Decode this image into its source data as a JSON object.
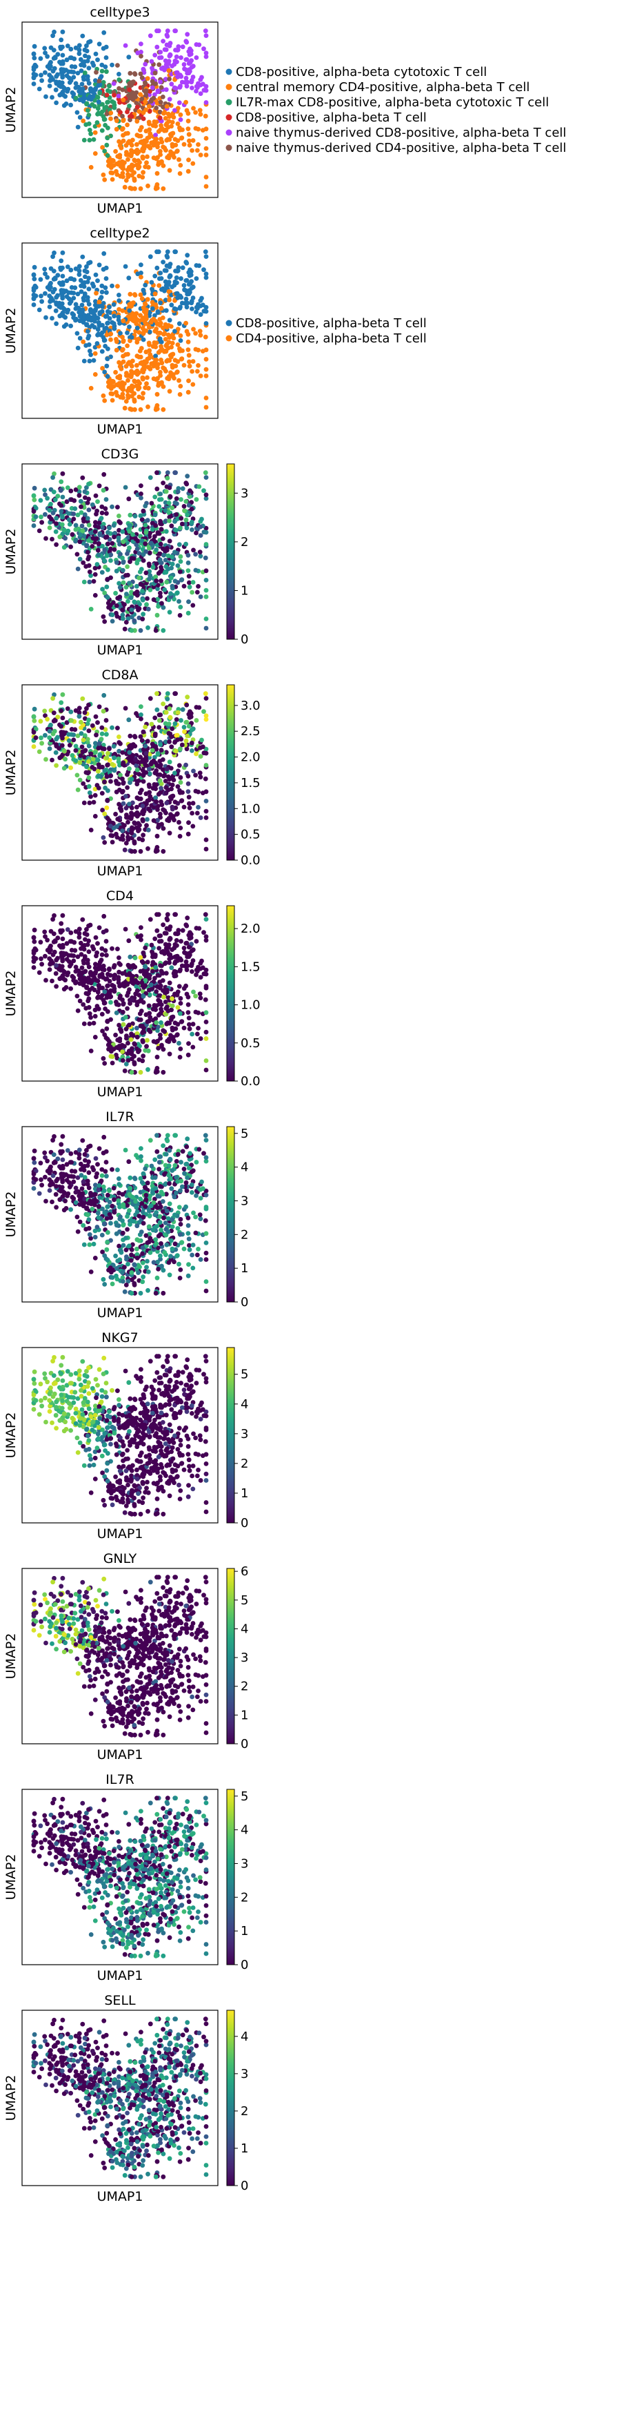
{
  "chart_data": [
    {
      "type": "scatter",
      "title": "celltype3",
      "xlabel": "UMAP1",
      "ylabel": "UMAP2",
      "color_mode": "categorical",
      "legend": {
        "placement": "right",
        "entries": [
          {
            "label": "CD8-positive, alpha-beta cytotoxic T cell",
            "color": "#1f77b4"
          },
          {
            "label": "central memory CD4-positive, alpha-beta T cell",
            "color": "#ff7f0e"
          },
          {
            "label": "IL7R-max CD8-positive, alpha-beta cytotoxic T cell",
            "color": "#279e68"
          },
          {
            "label": "CD8-positive, alpha-beta T cell",
            "color": "#d62728"
          },
          {
            "label": "naive thymus-derived CD8-positive, alpha-beta T cell",
            "color": "#aa40fc"
          },
          {
            "label": "naive thymus-derived CD4-positive, alpha-beta T cell",
            "color": "#8c564b"
          }
        ]
      }
    },
    {
      "type": "scatter",
      "title": "celltype2",
      "xlabel": "UMAP1",
      "ylabel": "UMAP2",
      "color_mode": "categorical",
      "legend": {
        "placement": "right",
        "entries": [
          {
            "label": "CD8-positive, alpha-beta T cell",
            "color": "#1f77b4"
          },
          {
            "label": "CD4-positive, alpha-beta T cell",
            "color": "#ff7f0e"
          }
        ]
      }
    },
    {
      "type": "scatter",
      "title": "CD3G",
      "xlabel": "UMAP1",
      "ylabel": "UMAP2",
      "color_mode": "viridis",
      "colorbar": {
        "range": [
          0,
          3.6
        ],
        "ticks": [
          "0",
          "1",
          "2",
          "3"
        ],
        "tick_values": [
          0,
          1,
          2,
          3
        ]
      }
    },
    {
      "type": "scatter",
      "title": "CD8A",
      "xlabel": "UMAP1",
      "ylabel": "UMAP2",
      "color_mode": "viridis",
      "colorbar": {
        "range": [
          0,
          3.4
        ],
        "ticks": [
          "0.0",
          "0.5",
          "1.0",
          "1.5",
          "2.0",
          "2.5",
          "3.0"
        ],
        "tick_values": [
          0,
          0.5,
          1,
          1.5,
          2,
          2.5,
          3
        ]
      }
    },
    {
      "type": "scatter",
      "title": "CD4",
      "xlabel": "UMAP1",
      "ylabel": "UMAP2",
      "color_mode": "viridis",
      "colorbar": {
        "range": [
          0,
          2.3
        ],
        "ticks": [
          "0.0",
          "0.5",
          "1.0",
          "1.5",
          "2.0"
        ],
        "tick_values": [
          0,
          0.5,
          1,
          1.5,
          2
        ]
      }
    },
    {
      "type": "scatter",
      "title": "IL7R",
      "xlabel": "UMAP1",
      "ylabel": "UMAP2",
      "color_mode": "viridis",
      "colorbar": {
        "range": [
          0,
          5.2
        ],
        "ticks": [
          "0",
          "1",
          "2",
          "3",
          "4",
          "5"
        ],
        "tick_values": [
          0,
          1,
          2,
          3,
          4,
          5
        ]
      }
    },
    {
      "type": "scatter",
      "title": "NKG7",
      "xlabel": "UMAP1",
      "ylabel": "UMAP2",
      "color_mode": "viridis",
      "colorbar": {
        "range": [
          0,
          5.9
        ],
        "ticks": [
          "0",
          "1",
          "2",
          "3",
          "4",
          "5"
        ],
        "tick_values": [
          0,
          1,
          2,
          3,
          4,
          5
        ]
      }
    },
    {
      "type": "scatter",
      "title": "GNLY",
      "xlabel": "UMAP1",
      "ylabel": "UMAP2",
      "color_mode": "viridis",
      "colorbar": {
        "range": [
          0,
          6.1
        ],
        "ticks": [
          "0",
          "1",
          "2",
          "3",
          "4",
          "5",
          "6"
        ],
        "tick_values": [
          0,
          1,
          2,
          3,
          4,
          5,
          6
        ]
      }
    },
    {
      "type": "scatter",
      "title": "IL7R",
      "xlabel": "UMAP1",
      "ylabel": "UMAP2",
      "color_mode": "viridis",
      "colorbar": {
        "range": [
          0,
          5.2
        ],
        "ticks": [
          "0",
          "1",
          "2",
          "3",
          "4",
          "5"
        ],
        "tick_values": [
          0,
          1,
          2,
          3,
          4,
          5
        ]
      }
    },
    {
      "type": "scatter",
      "title": "SELL",
      "xlabel": "UMAP1",
      "ylabel": "UMAP2",
      "color_mode": "viridis",
      "colorbar": {
        "range": [
          0,
          4.7
        ],
        "ticks": [
          "0",
          "1",
          "2",
          "3",
          "4"
        ],
        "tick_values": [
          0,
          1,
          2,
          3,
          4
        ]
      }
    }
  ]
}
